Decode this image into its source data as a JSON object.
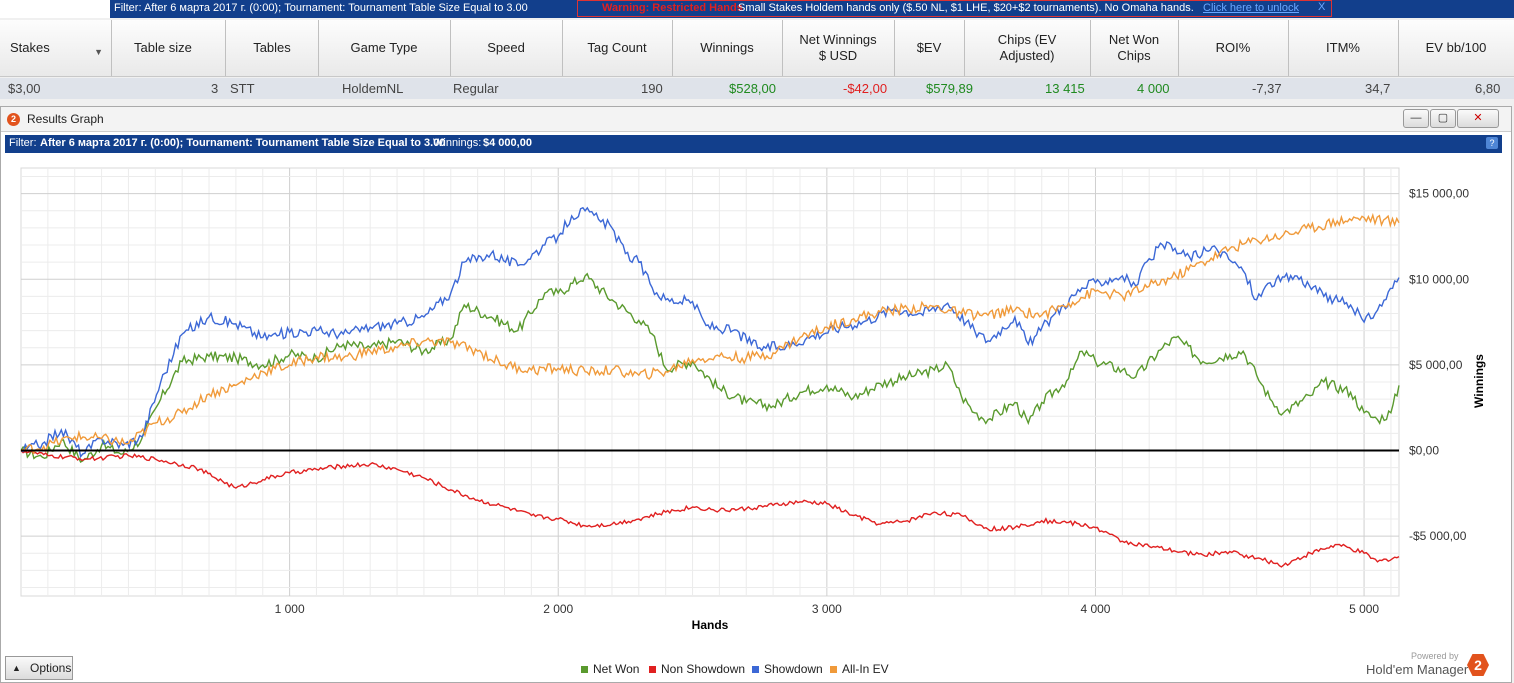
{
  "top_bar": {
    "filter_text": "Filter: After 6 марта 2017 г. (0:00); Tournament: Tournament Table Size Equal to 3.00",
    "warning_label": "Warning: Restricted Hands",
    "restriction_text": "Small Stakes Holdem hands only ($.50 NL, $1 LHE, $20+$2 tournaments).  No Omaha hands.",
    "unlock_link": "Click here to unlock",
    "close_x": "X"
  },
  "table": {
    "headers": [
      "Stakes",
      "Table size",
      "Tables",
      "Game Type",
      "Speed",
      "Tag Count",
      "Winnings",
      "Net Winnings\n$ USD",
      "$EV",
      "Chips (EV\nAdjusted)",
      "Net Won\nChips",
      "ROI%",
      "ITM%",
      "EV bb/100"
    ],
    "row": [
      "$3,00",
      "3",
      "STT",
      "HoldemNL",
      "Regular",
      "190",
      "$528,00",
      "-$42,00",
      "$579,89",
      "13 415",
      "4 000",
      "-7,37",
      "34,7",
      "6,80"
    ]
  },
  "graph_window": {
    "title": "Results Graph",
    "logo_glyph": "2",
    "filter_label": "Filter:",
    "filter_text": "After 6 марта 2017 г. (0:00); Tournament: Tournament Table Size Equal to 3.00",
    "winnings_label": "Winnings:",
    "winnings_value": "$4 000,00",
    "help_glyph": "?",
    "options_label": "Options",
    "powered_by": "Powered by",
    "brand": "Hold'em Manager",
    "brand_logo_glyph": "2",
    "controls": {
      "minimize": "—",
      "restore": "▢",
      "close": "✕"
    }
  },
  "chart_data": {
    "type": "line",
    "xlabel": "Hands",
    "ylabel": "Winnings",
    "xlim": [
      0,
      5130
    ],
    "ylim": [
      -8500,
      16500
    ],
    "x_ticks": [
      1000,
      2000,
      3000,
      4000,
      5000
    ],
    "x_tick_labels": [
      "1 000",
      "2 000",
      "3 000",
      "4 000",
      "5 000"
    ],
    "y_ticks": [
      15000,
      10000,
      5000,
      0,
      -5000
    ],
    "y_tick_labels": [
      "$15 000,00",
      "$10 000,00",
      "$5 000,00",
      "$0,00",
      "-$5 000,00"
    ],
    "legend_position": "bottom-center",
    "grid": true,
    "series": [
      {
        "name": "Net Won",
        "color": "#5a9a2e",
        "points": [
          [
            0,
            0
          ],
          [
            80,
            -400
          ],
          [
            150,
            600
          ],
          [
            230,
            -600
          ],
          [
            300,
            300
          ],
          [
            380,
            -200
          ],
          [
            450,
            700
          ],
          [
            520,
            3000
          ],
          [
            600,
            5200
          ],
          [
            700,
            5500
          ],
          [
            800,
            5400
          ],
          [
            900,
            5000
          ],
          [
            1000,
            5600
          ],
          [
            1100,
            5400
          ],
          [
            1200,
            6200
          ],
          [
            1300,
            6000
          ],
          [
            1400,
            6400
          ],
          [
            1500,
            5800
          ],
          [
            1600,
            6500
          ],
          [
            1650,
            8500
          ],
          [
            1750,
            7800
          ],
          [
            1850,
            7000
          ],
          [
            1950,
            9200
          ],
          [
            2000,
            9200
          ],
          [
            2100,
            10200
          ],
          [
            2200,
            8800
          ],
          [
            2300,
            7600
          ],
          [
            2350,
            6800
          ],
          [
            2400,
            4800
          ],
          [
            2500,
            5200
          ],
          [
            2600,
            3600
          ],
          [
            2700,
            2800
          ],
          [
            2800,
            2600
          ],
          [
            2900,
            3400
          ],
          [
            3000,
            3800
          ],
          [
            3100,
            3100
          ],
          [
            3200,
            3900
          ],
          [
            3300,
            4300
          ],
          [
            3400,
            4700
          ],
          [
            3450,
            5000
          ],
          [
            3500,
            3200
          ],
          [
            3550,
            2200
          ],
          [
            3600,
            1800
          ],
          [
            3700,
            2800
          ],
          [
            3750,
            1600
          ],
          [
            3800,
            2800
          ],
          [
            3900,
            4200
          ],
          [
            3950,
            5800
          ],
          [
            4000,
            5200
          ],
          [
            4100,
            4700
          ],
          [
            4150,
            4300
          ],
          [
            4250,
            6000
          ],
          [
            4300,
            6600
          ],
          [
            4400,
            5200
          ],
          [
            4500,
            5600
          ],
          [
            4550,
            5800
          ],
          [
            4600,
            4400
          ],
          [
            4650,
            3000
          ],
          [
            4700,
            2200
          ],
          [
            4800,
            3200
          ],
          [
            4850,
            4000
          ],
          [
            4950,
            3400
          ],
          [
            5000,
            2200
          ],
          [
            5050,
            1800
          ],
          [
            5100,
            2200
          ],
          [
            5130,
            3800
          ]
        ]
      },
      {
        "name": "Non Showdown",
        "color": "#e02020",
        "points": [
          [
            0,
            0
          ],
          [
            100,
            -300
          ],
          [
            250,
            -500
          ],
          [
            400,
            -300
          ],
          [
            500,
            -500
          ],
          [
            650,
            -1000
          ],
          [
            750,
            -1800
          ],
          [
            800,
            -2200
          ],
          [
            900,
            -1700
          ],
          [
            1000,
            -1300
          ],
          [
            1100,
            -1100
          ],
          [
            1200,
            -900
          ],
          [
            1300,
            -800
          ],
          [
            1400,
            -1100
          ],
          [
            1500,
            -1600
          ],
          [
            1600,
            -2300
          ],
          [
            1700,
            -2900
          ],
          [
            1800,
            -3300
          ],
          [
            1900,
            -3800
          ],
          [
            2000,
            -4000
          ],
          [
            2100,
            -4400
          ],
          [
            2200,
            -4300
          ],
          [
            2300,
            -4000
          ],
          [
            2400,
            -3600
          ],
          [
            2500,
            -3300
          ],
          [
            2600,
            -3500
          ],
          [
            2700,
            -3400
          ],
          [
            2800,
            -3200
          ],
          [
            2900,
            -3000
          ],
          [
            3000,
            -3100
          ],
          [
            3100,
            -3800
          ],
          [
            3200,
            -4300
          ],
          [
            3300,
            -4100
          ],
          [
            3400,
            -3600
          ],
          [
            3500,
            -3800
          ],
          [
            3600,
            -4600
          ],
          [
            3700,
            -4500
          ],
          [
            3800,
            -4100
          ],
          [
            3900,
            -4200
          ],
          [
            4000,
            -4500
          ],
          [
            4100,
            -5300
          ],
          [
            4200,
            -5600
          ],
          [
            4300,
            -5900
          ],
          [
            4400,
            -6100
          ],
          [
            4500,
            -5900
          ],
          [
            4600,
            -6300
          ],
          [
            4700,
            -6700
          ],
          [
            4800,
            -6000
          ],
          [
            4900,
            -5500
          ],
          [
            5000,
            -6000
          ],
          [
            5050,
            -6500
          ],
          [
            5130,
            -6200
          ]
        ]
      },
      {
        "name": "Showdown",
        "color": "#3c68d6",
        "points": [
          [
            0,
            0
          ],
          [
            80,
            400
          ],
          [
            150,
            1200
          ],
          [
            230,
            -200
          ],
          [
            300,
            700
          ],
          [
            380,
            300
          ],
          [
            450,
            800
          ],
          [
            520,
            4000
          ],
          [
            600,
            6800
          ],
          [
            700,
            7800
          ],
          [
            800,
            7400
          ],
          [
            900,
            6600
          ],
          [
            1000,
            6900
          ],
          [
            1100,
            7000
          ],
          [
            1200,
            6800
          ],
          [
            1300,
            7200
          ],
          [
            1400,
            7400
          ],
          [
            1500,
            7800
          ],
          [
            1600,
            9200
          ],
          [
            1650,
            11000
          ],
          [
            1750,
            11500
          ],
          [
            1850,
            10800
          ],
          [
            1950,
            12000
          ],
          [
            2000,
            12500
          ],
          [
            2050,
            13700
          ],
          [
            2100,
            14000
          ],
          [
            2150,
            13500
          ],
          [
            2200,
            13000
          ],
          [
            2250,
            11500
          ],
          [
            2300,
            11000
          ],
          [
            2350,
            9500
          ],
          [
            2400,
            8800
          ],
          [
            2500,
            8700
          ],
          [
            2550,
            7300
          ],
          [
            2650,
            7000
          ],
          [
            2750,
            6000
          ],
          [
            2850,
            6100
          ],
          [
            2950,
            6700
          ],
          [
            3050,
            7200
          ],
          [
            3150,
            7600
          ],
          [
            3250,
            8300
          ],
          [
            3350,
            8000
          ],
          [
            3450,
            8600
          ],
          [
            3550,
            7000
          ],
          [
            3600,
            6400
          ],
          [
            3700,
            7800
          ],
          [
            3750,
            6200
          ],
          [
            3850,
            8000
          ],
          [
            3950,
            9500
          ],
          [
            4000,
            9800
          ],
          [
            4100,
            10200
          ],
          [
            4150,
            9600
          ],
          [
            4200,
            11200
          ],
          [
            4250,
            12000
          ],
          [
            4350,
            11300
          ],
          [
            4450,
            11800
          ],
          [
            4550,
            10500
          ],
          [
            4600,
            8800
          ],
          [
            4650,
            9800
          ],
          [
            4750,
            10200
          ],
          [
            4850,
            9000
          ],
          [
            4950,
            8500
          ],
          [
            5000,
            7500
          ],
          [
            5050,
            8200
          ],
          [
            5130,
            10100
          ]
        ]
      },
      {
        "name": "All-In EV",
        "color": "#f09a3a",
        "points": [
          [
            0,
            0
          ],
          [
            100,
            300
          ],
          [
            200,
            800
          ],
          [
            300,
            700
          ],
          [
            400,
            400
          ],
          [
            500,
            1600
          ],
          [
            600,
            2200
          ],
          [
            700,
            3300
          ],
          [
            800,
            3800
          ],
          [
            900,
            4600
          ],
          [
            1000,
            5000
          ],
          [
            1100,
            5500
          ],
          [
            1200,
            5400
          ],
          [
            1300,
            5800
          ],
          [
            1400,
            6000
          ],
          [
            1500,
            6400
          ],
          [
            1600,
            6300
          ],
          [
            1700,
            5800
          ],
          [
            1800,
            5000
          ],
          [
            1900,
            4700
          ],
          [
            2000,
            4800
          ],
          [
            2100,
            4600
          ],
          [
            2200,
            4700
          ],
          [
            2300,
            4400
          ],
          [
            2400,
            4600
          ],
          [
            2500,
            5300
          ],
          [
            2600,
            5500
          ],
          [
            2700,
            5400
          ],
          [
            2800,
            5700
          ],
          [
            2900,
            6600
          ],
          [
            3000,
            7200
          ],
          [
            3100,
            7700
          ],
          [
            3200,
            8100
          ],
          [
            3300,
            8300
          ],
          [
            3400,
            8400
          ],
          [
            3500,
            8000
          ],
          [
            3600,
            7900
          ],
          [
            3700,
            8200
          ],
          [
            3800,
            7900
          ],
          [
            3900,
            8600
          ],
          [
            4000,
            9300
          ],
          [
            4100,
            9000
          ],
          [
            4200,
            9600
          ],
          [
            4300,
            10200
          ],
          [
            4400,
            11000
          ],
          [
            4500,
            11800
          ],
          [
            4600,
            12300
          ],
          [
            4700,
            12600
          ],
          [
            4800,
            13000
          ],
          [
            4900,
            13400
          ],
          [
            5000,
            13600
          ],
          [
            5130,
            13300
          ]
        ]
      }
    ]
  }
}
